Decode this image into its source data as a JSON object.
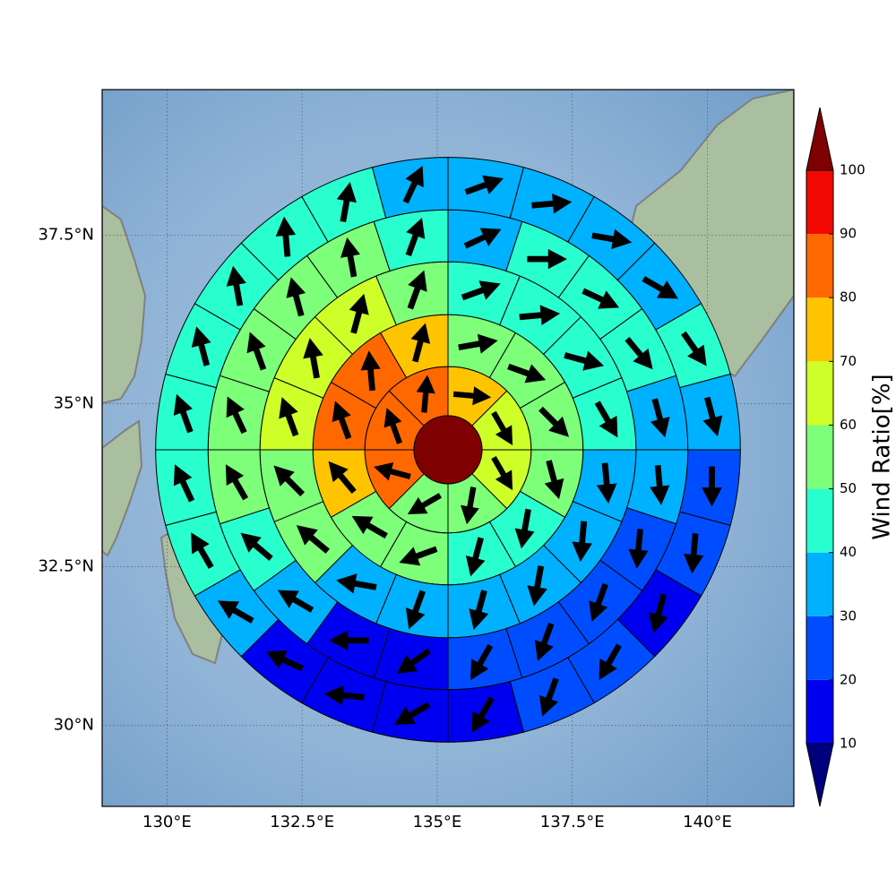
{
  "chart_data": {
    "type": "polar_sectors",
    "projection": "mercator",
    "xlim": [
      128.8,
      141.6
    ],
    "ylim": [
      28.7,
      39.6
    ],
    "xticks": [
      {
        "value": 130,
        "label": "130°E"
      },
      {
        "value": 132.5,
        "label": "132.5°E"
      },
      {
        "value": 135,
        "label": "135°E"
      },
      {
        "value": 137.5,
        "label": "137.5°E"
      },
      {
        "value": 140,
        "label": "140°E"
      }
    ],
    "yticks": [
      {
        "value": 30,
        "label": "30°N"
      },
      {
        "value": 32.5,
        "label": "32.5°N"
      },
      {
        "value": 35,
        "label": "35°N"
      },
      {
        "value": 37.5,
        "label": "37.5°N"
      }
    ],
    "grid": true,
    "center": {
      "lon": 135.2,
      "lat": 34.3,
      "value": 105
    },
    "ring_edges": [
      0.63,
      1.54,
      2.5,
      3.48,
      4.44,
      5.41
    ],
    "arrow_color": "#000000",
    "rings": [
      {
        "values": [
          75,
          65,
          65,
          55,
          55,
          85,
          85,
          85
        ],
        "directions": [
          95,
          150,
          150,
          190,
          240,
          285,
          340,
          5
        ]
      },
      {
        "values": [
          55,
          55,
          55,
          55,
          45,
          45,
          55,
          55,
          75,
          85,
          85,
          75
        ],
        "directions": [
          80,
          110,
          135,
          165,
          190,
          195,
          250,
          300,
          320,
          340,
          355,
          15
        ]
      },
      {
        "values": [
          45,
          45,
          45,
          45,
          35,
          35,
          35,
          35,
          35,
          35,
          55,
          55,
          65,
          65,
          65,
          55
        ],
        "directions": [
          70,
          85,
          105,
          150,
          175,
          185,
          190,
          195,
          200,
          280,
          310,
          315,
          340,
          350,
          15,
          20
        ]
      },
      {
        "values": [
          35,
          45,
          45,
          45,
          35,
          35,
          25,
          25,
          25,
          25,
          15,
          15,
          35,
          45,
          55,
          55,
          55,
          55,
          55,
          45
        ],
        "directions": [
          65,
          90,
          115,
          140,
          165,
          175,
          185,
          200,
          200,
          210,
          235,
          270,
          300,
          310,
          330,
          335,
          340,
          345,
          350,
          20
        ]
      },
      {
        "values": [
          35,
          35,
          35,
          35,
          45,
          35,
          25,
          25,
          15,
          25,
          25,
          15,
          15,
          15,
          15,
          35,
          45,
          45,
          45,
          45,
          45,
          45,
          45,
          35
        ],
        "directions": [
          70,
          85,
          100,
          120,
          145,
          165,
          180,
          185,
          195,
          210,
          200,
          210,
          240,
          275,
          295,
          300,
          330,
          335,
          340,
          345,
          350,
          355,
          10,
          25
        ]
      }
    ],
    "colorbar": {
      "label": "Wind Ratio[%]",
      "levels": [
        10,
        20,
        30,
        40,
        50,
        60,
        70,
        80,
        90,
        100
      ],
      "colors": [
        "#0000f1",
        "#004dff",
        "#00b1ff",
        "#29ffce",
        "#7dff7a",
        "#ceff29",
        "#ffc400",
        "#ff6800",
        "#f10800"
      ],
      "under_color": "#00007f",
      "over_color": "#7f0000"
    }
  }
}
